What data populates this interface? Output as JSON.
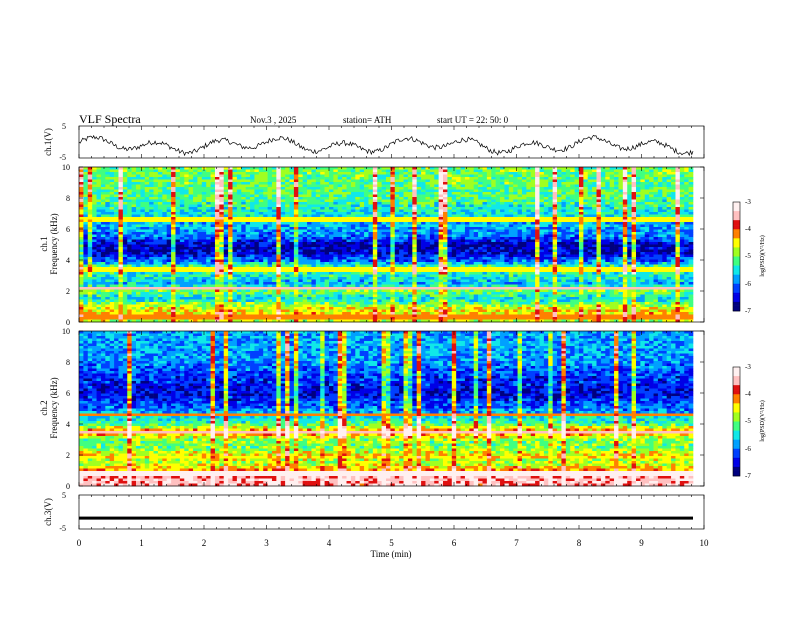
{
  "header": {
    "title": "VLF  Spectra",
    "date": "Nov.3   , 2025",
    "station": "station= ATH",
    "start": "start  UT  =    22: 50: 0"
  },
  "colors": {
    "background": "#ffffff",
    "axis": "#000000",
    "colormap": [
      "#00007f",
      "#0000e6",
      "#0040ff",
      "#00a0ff",
      "#10e8e8",
      "#40ff80",
      "#a0ff20",
      "#ffff00",
      "#ff8000",
      "#e01010",
      "#ffc0c0",
      "#fff0f0"
    ]
  },
  "chart_data": [
    {
      "type": "line",
      "name": "ch1-waveform",
      "ylabel": "ch.1(V)",
      "ylim": [
        -5,
        5
      ],
      "yticks": [
        "5",
        "-5"
      ],
      "xlim": [
        0,
        10
      ],
      "samples": 500,
      "description_of_trace": "oscillating waveform around about -1 V"
    },
    {
      "type": "heatmap",
      "name": "ch1-spectrogram",
      "ylabel_lines": [
        "ch.1",
        "Frequency  (kHz)"
      ],
      "ylim": [
        0,
        10
      ],
      "yticks": [
        "0",
        "2",
        "4",
        "6",
        "8",
        "10"
      ],
      "xlim": [
        0,
        9.85
      ],
      "colorbar": {
        "label": "log(PSD)(V²/Hz)",
        "range": [
          -7,
          -3
        ],
        "ticks": [
          "-3",
          "-4",
          "-5",
          "-6",
          "-7"
        ]
      },
      "band_levels_kHz": [
        {
          "f": 0.0,
          "v": 0.55
        },
        {
          "f": 0.5,
          "v": 0.65
        },
        {
          "f": 1.0,
          "v": 0.58
        },
        {
          "f": 1.5,
          "v": 0.35
        },
        {
          "f": 2.0,
          "v": 0.5
        },
        {
          "f": 2.5,
          "v": 0.32
        },
        {
          "f": 3.0,
          "v": 0.4
        },
        {
          "f": 3.5,
          "v": 0.48
        },
        {
          "f": 4.0,
          "v": 0.22
        },
        {
          "f": 4.5,
          "v": 0.1
        },
        {
          "f": 5.0,
          "v": 0.08
        },
        {
          "f": 5.5,
          "v": 0.25
        },
        {
          "f": 6.0,
          "v": 0.3
        },
        {
          "f": 7.0,
          "v": 0.38
        },
        {
          "f": 8.0,
          "v": 0.45
        },
        {
          "f": 9.0,
          "v": 0.48
        },
        {
          "f": 10.0,
          "v": 0.5
        }
      ],
      "lines_kHz": [
        {
          "f": 0.3,
          "v": 0.7
        },
        {
          "f": 2.2,
          "v": 0.9
        },
        {
          "f": 3.4,
          "v": 0.6
        },
        {
          "f": 6.6,
          "v": 0.6
        }
      ]
    },
    {
      "type": "heatmap",
      "name": "ch2-spectrogram",
      "ylabel_lines": [
        "ch.2",
        "Frequency  (kHz)"
      ],
      "ylim": [
        0,
        10
      ],
      "yticks": [
        "0",
        "2",
        "4",
        "6",
        "8",
        "10"
      ],
      "xlim": [
        0,
        9.85
      ],
      "colorbar": {
        "label": "log(PSD)(V²/Hz)",
        "range": [
          -7,
          -3
        ],
        "ticks": [
          "-3",
          "-4",
          "-5",
          "-6",
          "-7"
        ]
      },
      "band_levels_kHz": [
        {
          "f": 0.0,
          "v": 0.85
        },
        {
          "f": 0.5,
          "v": 0.88
        },
        {
          "f": 1.0,
          "v": 0.72
        },
        {
          "f": 1.5,
          "v": 0.55
        },
        {
          "f": 2.0,
          "v": 0.62
        },
        {
          "f": 2.5,
          "v": 0.5
        },
        {
          "f": 3.0,
          "v": 0.52
        },
        {
          "f": 3.5,
          "v": 0.75
        },
        {
          "f": 4.0,
          "v": 0.45
        },
        {
          "f": 4.5,
          "v": 0.35
        },
        {
          "f": 5.0,
          "v": 0.25
        },
        {
          "f": 5.5,
          "v": 0.18
        },
        {
          "f": 6.0,
          "v": 0.12
        },
        {
          "f": 7.0,
          "v": 0.18
        },
        {
          "f": 8.0,
          "v": 0.28
        },
        {
          "f": 9.0,
          "v": 0.3
        },
        {
          "f": 10.0,
          "v": 0.3
        }
      ],
      "lines_kHz": [
        {
          "f": 0.8,
          "v": 0.92
        },
        {
          "f": 3.5,
          "v": 0.9
        },
        {
          "f": 4.6,
          "v": 0.7
        },
        {
          "f": 1.9,
          "v": 0.6
        }
      ]
    },
    {
      "type": "line",
      "name": "ch3-trace",
      "ylabel": "ch.3(V)",
      "ylim": [
        -5,
        5
      ],
      "yticks": [
        "5",
        "-5"
      ],
      "xlim": [
        0,
        10
      ],
      "level": -1.8,
      "xlabel": "Time  (min)",
      "xticks": [
        "0",
        "1",
        "2",
        "3",
        "4",
        "5",
        "6",
        "7",
        "8",
        "9",
        "10"
      ]
    }
  ]
}
